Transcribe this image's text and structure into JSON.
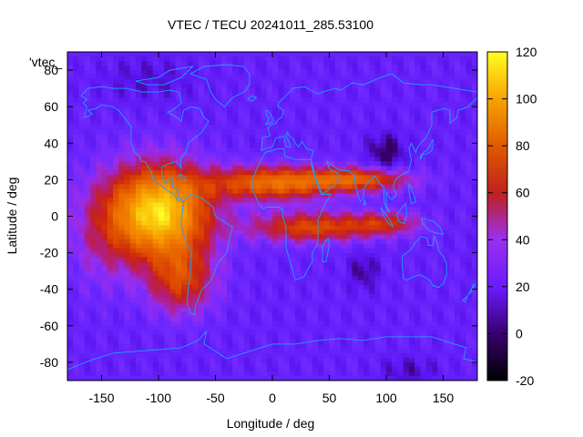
{
  "chart_data": {
    "type": "heatmap",
    "title": "VTEC / TECU 20241011_285.53100",
    "xlabel": "Longitude / deg",
    "ylabel": "Latitude / deg",
    "legend_label": "'vtec_",
    "xlim": [
      -180,
      180
    ],
    "ylim": [
      -90,
      90
    ],
    "x_ticks": [
      -150,
      -100,
      -50,
      0,
      50,
      100,
      150
    ],
    "y_ticks": [
      80,
      60,
      40,
      20,
      0,
      -20,
      -40,
      -60,
      -80
    ],
    "colorbar": {
      "min": -20,
      "max": 120,
      "ticks": [
        120,
        100,
        80,
        60,
        40,
        20,
        0,
        -20
      ]
    },
    "approx_features": [
      {
        "name": "south_american_crest",
        "lon": -100,
        "lat": 0,
        "vtec": 115
      },
      {
        "name": "northern_crest_atlantic_africa",
        "lon": 20,
        "lat": 20,
        "vtec": 75
      },
      {
        "name": "southern_crest_africa_indian",
        "lon": 50,
        "lat": -5,
        "vtec": 65
      },
      {
        "name": "pacific_low",
        "lon": 100,
        "lat": 35,
        "vtec": 0
      },
      {
        "name": "background",
        "lon": 120,
        "lat": -60,
        "vtec": 15
      }
    ]
  }
}
